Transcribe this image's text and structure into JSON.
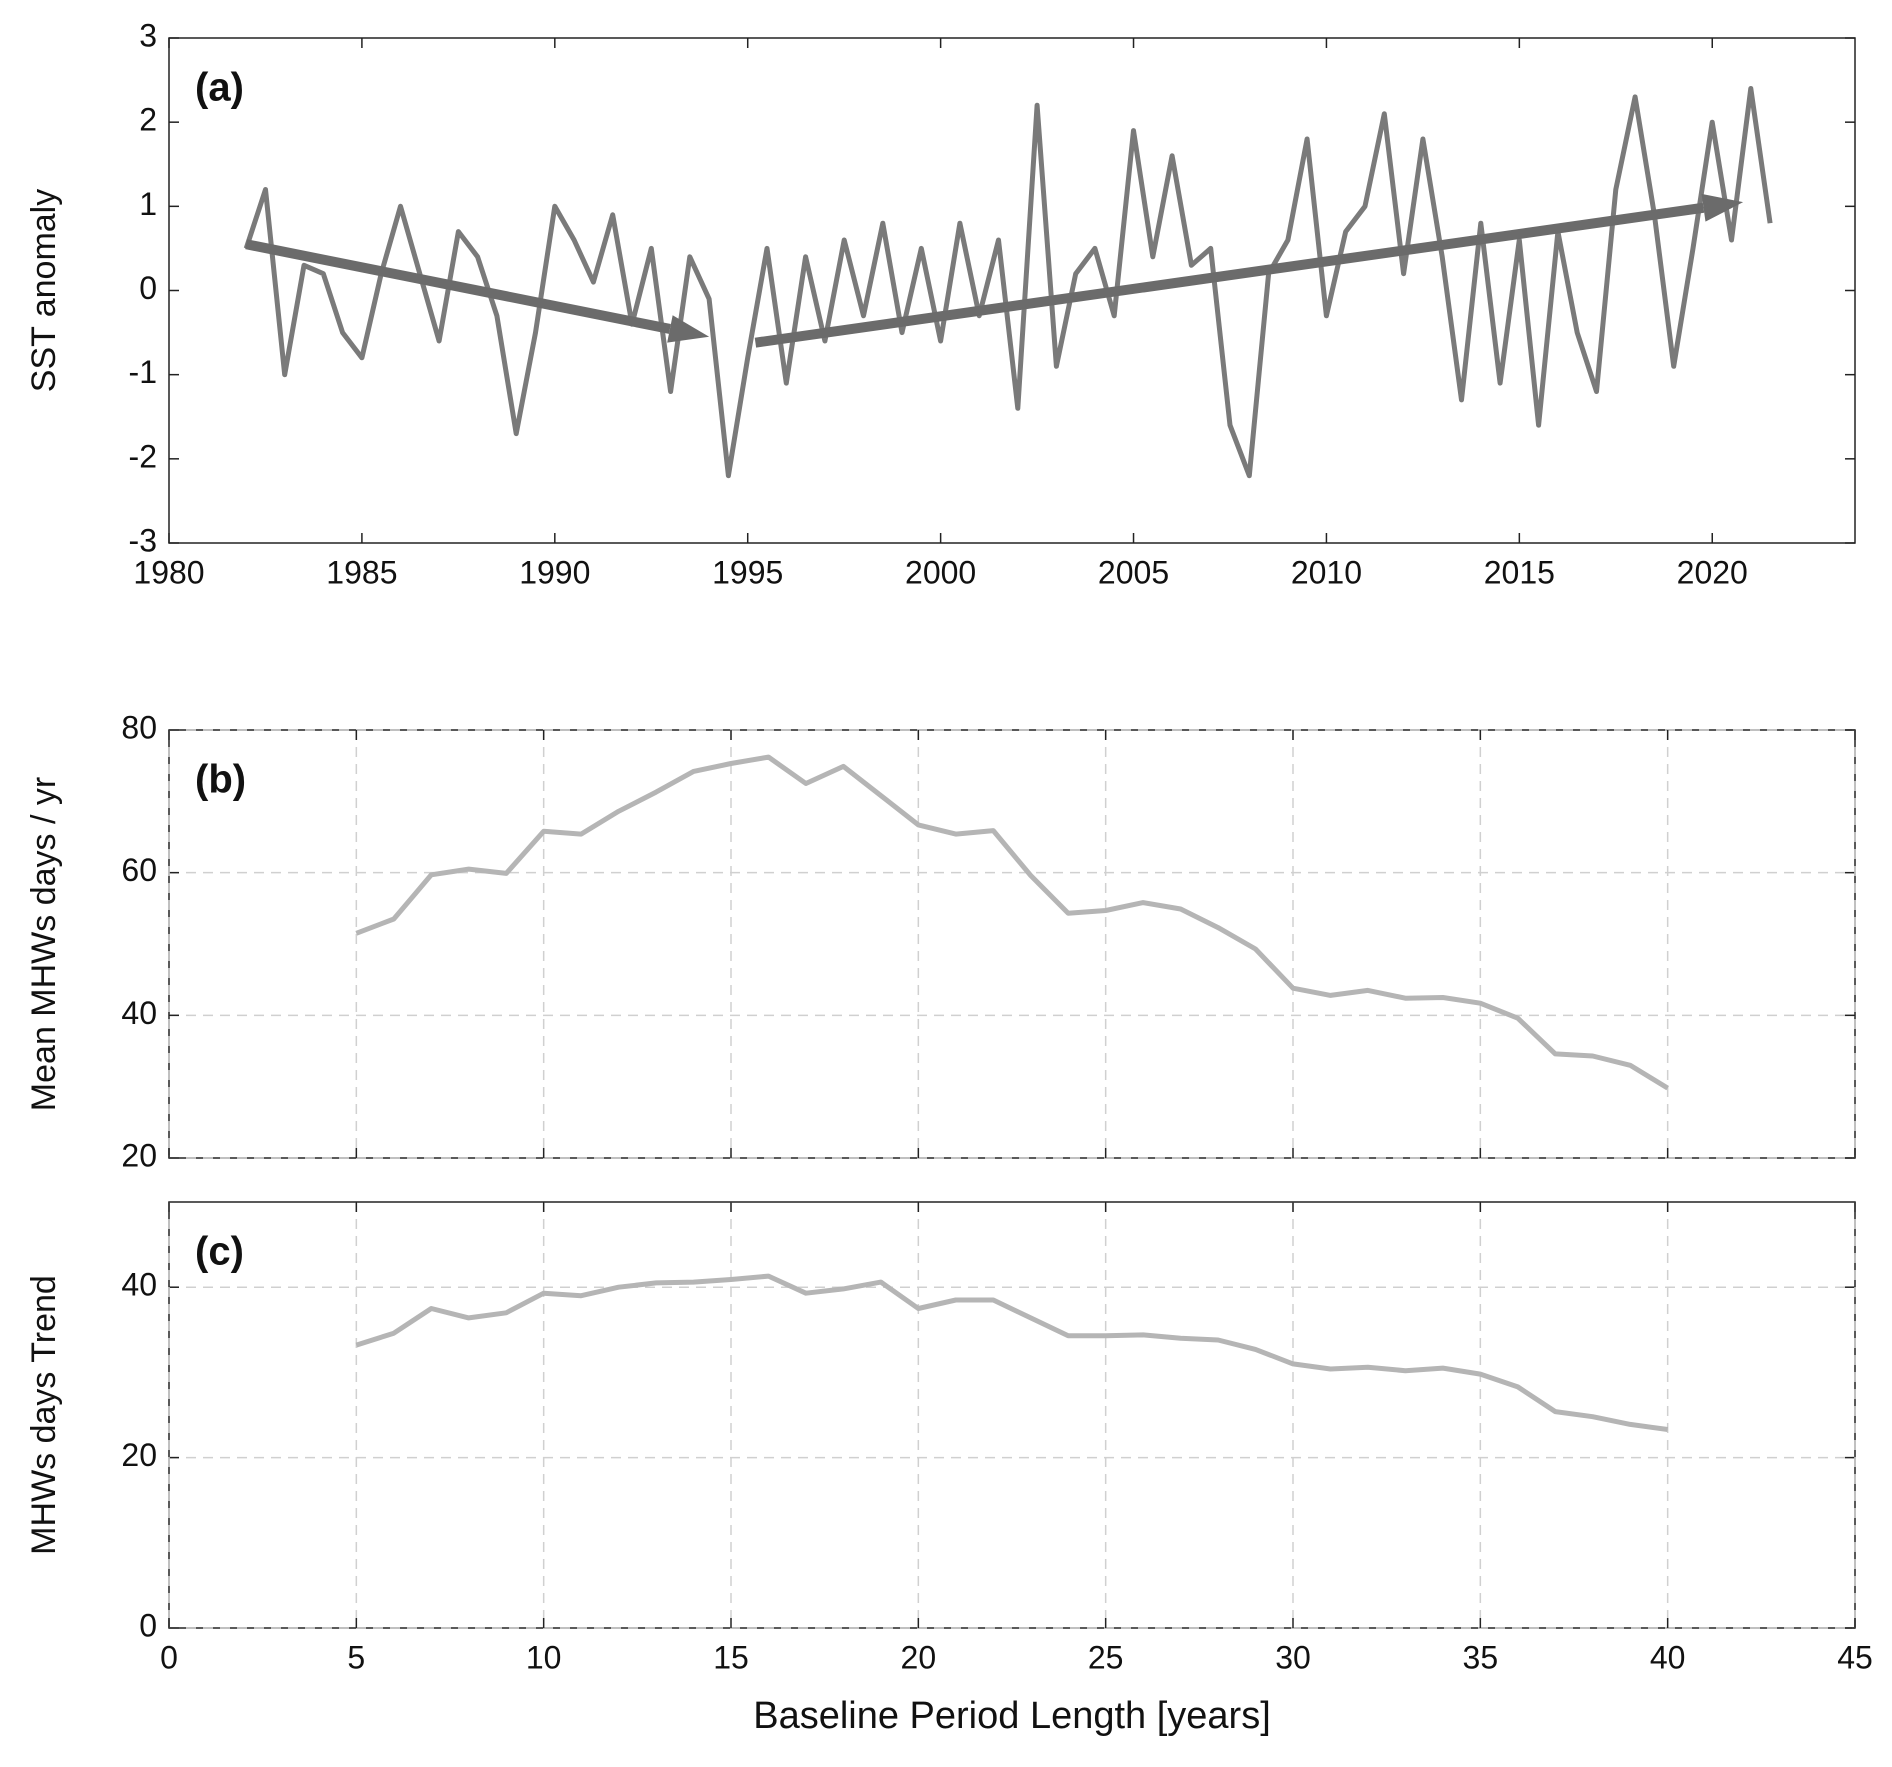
{
  "chart_data": [
    {
      "type": "line",
      "panel_label": "(a)",
      "y_label": "SST anomaly",
      "xlim": [
        1980,
        2023.7
      ],
      "xticks": [
        1980,
        1985,
        1990,
        1995,
        2000,
        2005,
        2010,
        2015,
        2020
      ],
      "ylim": [
        -3,
        3
      ],
      "yticks": [
        -3,
        -2,
        -1,
        0,
        1,
        2,
        3
      ],
      "grid": false,
      "x": [
        1982.0,
        1982.5,
        1983.0,
        1983.5,
        1984.0,
        1984.5,
        1985.0,
        1985.5,
        1986.0,
        1986.5,
        1987.0,
        1987.5,
        1988.0,
        1988.5,
        1989.0,
        1989.5,
        1990.0,
        1990.5,
        1991.0,
        1991.5,
        1992.0,
        1992.5,
        1993.0,
        1993.5,
        1994.0,
        1994.5,
        1995.0,
        1995.5,
        1996.0,
        1996.5,
        1997.0,
        1997.5,
        1998.0,
        1998.5,
        1999.0,
        1999.5,
        2000.0,
        2000.5,
        2001.0,
        2001.5,
        2002.0,
        2002.5,
        2003.0,
        2003.5,
        2004.0,
        2004.5,
        2005.0,
        2005.5,
        2006.0,
        2006.5,
        2007.0,
        2007.5,
        2008.0,
        2008.5,
        2009.0,
        2009.5,
        2010.0,
        2010.5,
        2011.0,
        2011.5,
        2012.0,
        2012.5,
        2013.0,
        2013.5,
        2014.0,
        2014.5,
        2015.0,
        2015.5,
        2016.0,
        2016.5,
        2017.0,
        2017.5,
        2018.0,
        2018.5,
        2019.0,
        2019.5,
        2020.0,
        2020.5,
        2021.0,
        2021.5
      ],
      "series": [
        {
          "color": "#7a7a7a",
          "values": [
            0.5,
            1.2,
            -1.0,
            0.3,
            0.2,
            -0.5,
            -0.8,
            0.2,
            1.0,
            0.2,
            -0.6,
            0.7,
            0.4,
            -0.3,
            -1.7,
            -0.5,
            1.0,
            0.6,
            0.1,
            0.9,
            -0.4,
            0.5,
            -1.2,
            0.4,
            -0.1,
            -2.2,
            -0.8,
            0.5,
            -1.1,
            0.4,
            -0.6,
            0.6,
            -0.3,
            0.8,
            -0.5,
            0.5,
            -0.6,
            0.8,
            -0.3,
            0.6,
            -1.4,
            2.2,
            -0.9,
            0.2,
            0.5,
            -0.3,
            1.9,
            0.4,
            1.6,
            0.3,
            0.5,
            -1.6,
            -2.2,
            0.2,
            0.6,
            1.8,
            -0.3,
            0.7,
            1.0,
            2.1,
            0.2,
            1.8,
            0.4,
            -1.3,
            0.8,
            -1.1,
            0.6,
            -1.6,
            0.7,
            -0.5,
            -1.2,
            1.2,
            2.3,
            0.9,
            -0.9,
            0.5,
            2.0,
            0.6,
            2.4,
            0.8
          ]
        }
      ],
      "arrows": [
        {
          "color": "#6b6b6b",
          "x": [
            1982,
            1994
          ],
          "y": [
            0.55,
            -0.55
          ]
        },
        {
          "color": "#6b6b6b",
          "x": [
            1995.2,
            2020.8
          ],
          "y": [
            -0.62,
            1.05
          ]
        }
      ]
    },
    {
      "type": "line",
      "panel_label": "(b)",
      "y_label": "Mean MHWs days / yr",
      "xlim": [
        0,
        45
      ],
      "xticks": [
        0,
        5,
        10,
        15,
        20,
        25,
        30,
        35,
        40,
        45
      ],
      "xticklabels": false,
      "ylim": [
        20,
        80
      ],
      "yticks": [
        20,
        40,
        60,
        80
      ],
      "grid": true,
      "x": [
        5,
        6,
        7,
        8,
        9,
        10,
        11,
        12,
        13,
        14,
        15,
        16,
        17,
        18,
        19,
        20,
        21,
        22,
        23,
        24,
        25,
        26,
        27,
        28,
        29,
        30,
        31,
        32,
        33,
        34,
        35,
        36,
        37,
        38,
        39,
        40
      ],
      "series": [
        {
          "color": "#b5b5b5",
          "values": [
            51.5,
            53.5,
            59.7,
            60.5,
            59.9,
            65.8,
            65.4,
            68.6,
            71.3,
            74.2,
            75.3,
            76.2,
            72.5,
            74.9,
            70.8,
            66.7,
            65.4,
            65.9,
            59.6,
            54.3,
            54.7,
            55.8,
            54.9,
            52.3,
            49.3,
            43.8,
            42.8,
            43.5,
            42.4,
            42.5,
            41.7,
            39.6,
            34.6,
            34.3,
            33.0,
            29.8
          ]
        }
      ]
    },
    {
      "type": "line",
      "panel_label": "(c)",
      "y_label": "MHWs days Trend",
      "x_label": "Baseline Period Length [years]",
      "xlim": [
        0,
        45
      ],
      "xticks": [
        0,
        5,
        10,
        15,
        20,
        25,
        30,
        35,
        40,
        45
      ],
      "xticklabels": true,
      "ylim": [
        0,
        50
      ],
      "yticks": [
        0,
        20,
        40
      ],
      "grid": true,
      "x": [
        5,
        6,
        7,
        8,
        9,
        10,
        11,
        12,
        13,
        14,
        15,
        16,
        17,
        18,
        19,
        20,
        21,
        22,
        23,
        24,
        25,
        26,
        27,
        28,
        29,
        30,
        31,
        32,
        33,
        34,
        35,
        36,
        37,
        38,
        39,
        40
      ],
      "series": [
        {
          "color": "#b5b5b5",
          "values": [
            33.2,
            34.6,
            37.5,
            36.4,
            37.0,
            39.3,
            39.0,
            40.0,
            40.5,
            40.6,
            40.9,
            41.3,
            39.3,
            39.8,
            40.6,
            37.5,
            38.5,
            38.5,
            36.4,
            34.3,
            34.3,
            34.4,
            34.0,
            33.8,
            32.7,
            31.0,
            30.4,
            30.6,
            30.2,
            30.5,
            29.8,
            28.3,
            25.4,
            24.8,
            23.9,
            23.3
          ]
        }
      ]
    }
  ]
}
